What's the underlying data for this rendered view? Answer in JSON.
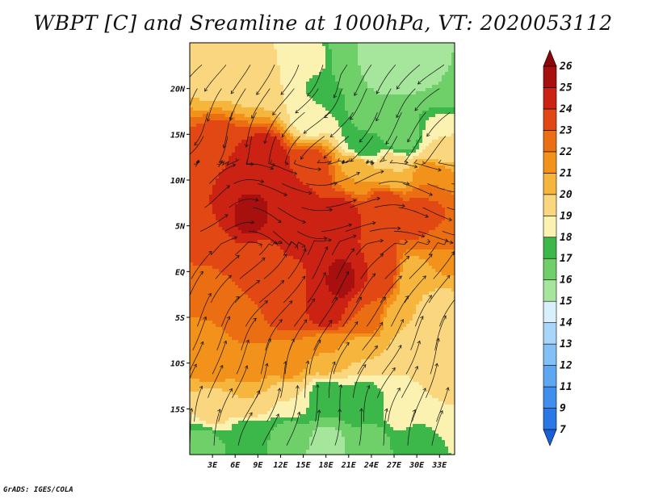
{
  "title": "WBPT [C] and Sreamline at 1000hPa, VT: 2020053112",
  "footer": "GrADS: IGES/COLA",
  "chart_data": {
    "type": "heatmap",
    "title": "WBPT [C] and Sreamline at 1000hPa, VT: 2020053112",
    "xlim": [
      0,
      35
    ],
    "ylim": [
      -20,
      25
    ],
    "x_ticks": [
      {
        "value": 3,
        "label": "3E"
      },
      {
        "value": 6,
        "label": "6E"
      },
      {
        "value": 9,
        "label": "9E"
      },
      {
        "value": 12,
        "label": "12E"
      },
      {
        "value": 15,
        "label": "15E"
      },
      {
        "value": 18,
        "label": "18E"
      },
      {
        "value": 21,
        "label": "21E"
      },
      {
        "value": 24,
        "label": "24E"
      },
      {
        "value": 27,
        "label": "27E"
      },
      {
        "value": 30,
        "label": "30E"
      },
      {
        "value": 33,
        "label": "33E"
      }
    ],
    "y_ticks": [
      {
        "value": 20,
        "label": "20N"
      },
      {
        "value": 15,
        "label": "15N"
      },
      {
        "value": 10,
        "label": "10N"
      },
      {
        "value": 5,
        "label": "5N"
      },
      {
        "value": 0,
        "label": "EQ"
      },
      {
        "value": -5,
        "label": "5S"
      },
      {
        "value": -10,
        "label": "10S"
      },
      {
        "value": -15,
        "label": "15S"
      }
    ],
    "colorbar": {
      "levels": [
        "7",
        "9",
        "11",
        "12",
        "13",
        "14",
        "15",
        "16",
        "17",
        "18",
        "19",
        "20",
        "21",
        "22",
        "23",
        "24",
        "25",
        "26"
      ],
      "colors": [
        "#1a5fd8",
        "#2a78e6",
        "#3f90ee",
        "#5ea8f2",
        "#82c0f6",
        "#a8d6fa",
        "#d8f0fb",
        "#a6e69c",
        "#6fd06a",
        "#3cb84a",
        "#fbf1b0",
        "#fad67e",
        "#f6b53c",
        "#f3921a",
        "#ec6e12",
        "#e24814",
        "#cc2214",
        "#a81010",
        "#8a0808"
      ]
    },
    "field_points": [
      {
        "lon": 3,
        "lat": 22,
        "value": 19.5
      },
      {
        "lon": 8,
        "lat": 21,
        "value": 19.5
      },
      {
        "lon": 12,
        "lat": 22,
        "value": 19
      },
      {
        "lon": 16,
        "lat": 23,
        "value": 18.5
      },
      {
        "lon": 21,
        "lat": 23.5,
        "value": 16
      },
      {
        "lon": 26,
        "lat": 23,
        "value": 15
      },
      {
        "lon": 30,
        "lat": 23,
        "value": 15.5
      },
      {
        "lon": 33,
        "lat": 21,
        "value": 16
      },
      {
        "lon": 18,
        "lat": 20,
        "value": 17
      },
      {
        "lon": 16,
        "lat": 17,
        "value": 18.5
      },
      {
        "lon": 24,
        "lat": 18,
        "value": 16
      },
      {
        "lon": 28,
        "lat": 15,
        "value": 16
      },
      {
        "lon": 23,
        "lat": 14,
        "value": 17
      },
      {
        "lon": 33,
        "lat": 14,
        "value": 19
      },
      {
        "lon": 4,
        "lat": 13,
        "value": 24
      },
      {
        "lon": 10,
        "lat": 12,
        "value": 25
      },
      {
        "lon": 16,
        "lat": 11,
        "value": 24
      },
      {
        "lon": 22,
        "lat": 11,
        "value": 21
      },
      {
        "lon": 27,
        "lat": 11,
        "value": 20
      },
      {
        "lon": 32,
        "lat": 10,
        "value": 22
      },
      {
        "lon": 2,
        "lat": 7,
        "value": 24
      },
      {
        "lon": 8,
        "lat": 6,
        "value": 25.2
      },
      {
        "lon": 14,
        "lat": 6,
        "value": 25
      },
      {
        "lon": 20,
        "lat": 6,
        "value": 24.5
      },
      {
        "lon": 26,
        "lat": 7,
        "value": 24
      },
      {
        "lon": 31,
        "lat": 6,
        "value": 24
      },
      {
        "lon": 3,
        "lat": 1,
        "value": 23
      },
      {
        "lon": 9,
        "lat": 1,
        "value": 23.5
      },
      {
        "lon": 15,
        "lat": 0,
        "value": 24
      },
      {
        "lon": 20,
        "lat": -1,
        "value": 25.3
      },
      {
        "lon": 25,
        "lat": 0,
        "value": 24
      },
      {
        "lon": 30,
        "lat": -1,
        "value": 20
      },
      {
        "lon": 33,
        "lat": 3,
        "value": 22
      },
      {
        "lon": 3,
        "lat": -5,
        "value": 22
      },
      {
        "lon": 8,
        "lat": -4,
        "value": 23
      },
      {
        "lon": 13,
        "lat": -4,
        "value": 23.5
      },
      {
        "lon": 18,
        "lat": -4,
        "value": 24.8
      },
      {
        "lon": 23,
        "lat": -5,
        "value": 23
      },
      {
        "lon": 28,
        "lat": -6,
        "value": 20
      },
      {
        "lon": 33,
        "lat": -5,
        "value": 19.5
      },
      {
        "lon": 3,
        "lat": -10,
        "value": 21.5
      },
      {
        "lon": 8,
        "lat": -10,
        "value": 22
      },
      {
        "lon": 13,
        "lat": -10,
        "value": 21.5
      },
      {
        "lon": 18,
        "lat": -9,
        "value": 21
      },
      {
        "lon": 23,
        "lat": -9,
        "value": 20
      },
      {
        "lon": 29,
        "lat": -10,
        "value": 19
      },
      {
        "lon": 33,
        "lat": -10,
        "value": 19.5
      },
      {
        "lon": 3,
        "lat": -15,
        "value": 19.5
      },
      {
        "lon": 8,
        "lat": -14,
        "value": 20
      },
      {
        "lon": 13,
        "lat": -14,
        "value": 19
      },
      {
        "lon": 18,
        "lat": -14,
        "value": 17.2
      },
      {
        "lon": 23,
        "lat": -14,
        "value": 17.5
      },
      {
        "lon": 28,
        "lat": -15,
        "value": 18.5
      },
      {
        "lon": 33,
        "lat": -14,
        "value": 19
      },
      {
        "lon": 2,
        "lat": -19,
        "value": 16.5
      },
      {
        "lon": 8,
        "lat": -18,
        "value": 17
      },
      {
        "lon": 13,
        "lat": -18,
        "value": 16.5
      },
      {
        "lon": 18,
        "lat": -19,
        "value": 15.5
      },
      {
        "lon": 24,
        "lat": -19,
        "value": 16.5
      },
      {
        "lon": 30,
        "lat": -19,
        "value": 17.5
      }
    ]
  }
}
